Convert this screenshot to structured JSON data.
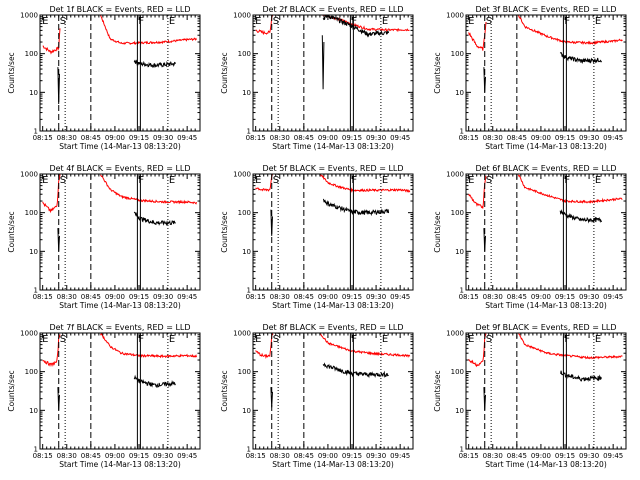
{
  "figure": {
    "background": "#ffffff",
    "colors": {
      "events": "#000000",
      "lld": "#ff0000"
    },
    "x_ticks": [
      "08:15",
      "08:30",
      "08:45",
      "09:00",
      "09:15",
      "09:30",
      "09:45"
    ],
    "x_tick_minutes": [
      15,
      30,
      45,
      60,
      75,
      90,
      105
    ],
    "y_ticks": [
      "1",
      "10",
      "100",
      "1000"
    ],
    "y_tick_values": [
      1,
      10,
      100,
      1000
    ],
    "ylabel": "Counts/sec",
    "xlabel": "Start Time (14-Mar-13 08:13:20)"
  },
  "chart_data": [
    {
      "type": "line",
      "title": "Det 1f BLACK = Events, RED = LLD",
      "xlim": [
        "08:13:20",
        "09:53"
      ],
      "ylim": [
        1,
        1000
      ],
      "yscale": "log",
      "xlabel": "Start Time (14-Mar-13 08:13:20)",
      "ylabel": "Counts/sec",
      "flags": [
        {
          "t": "08:14",
          "label": "E"
        },
        {
          "t": "08:25",
          "label": "S"
        },
        {
          "t": "09:14",
          "label": "F"
        },
        {
          "t": "09:33",
          "label": "E"
        }
      ],
      "red_pre": [
        [
          15,
          160
        ],
        [
          20,
          110
        ],
        [
          25,
          140
        ],
        [
          26,
          650
        ]
      ],
      "red_main": [
        [
          51,
          1000
        ],
        [
          57,
          240
        ],
        [
          64,
          185
        ],
        [
          75,
          190
        ],
        [
          90,
          200
        ],
        [
          105,
          230
        ],
        [
          111,
          240
        ]
      ],
      "black": [
        [
          72,
          65
        ],
        [
          76,
          55
        ],
        [
          85,
          50
        ],
        [
          98,
          55
        ]
      ],
      "spike": [
        [
          24.5,
          45
        ],
        [
          25,
          5
        ],
        [
          25.5,
          30
        ]
      ]
    },
    {
      "type": "line",
      "title": "Det 2f BLACK = Events, RED = LLD",
      "xlim": [
        "08:13:20",
        "09:53"
      ],
      "ylim": [
        1,
        1000
      ],
      "yscale": "log",
      "xlabel": "Start Time (14-Mar-13 08:13:20)",
      "ylabel": "Counts/sec",
      "flags": [
        {
          "t": "08:14",
          "label": "E"
        },
        {
          "t": "08:25",
          "label": "S"
        },
        {
          "t": "09:14",
          "label": "F"
        },
        {
          "t": "09:33",
          "label": "E"
        }
      ],
      "red_pre": [
        [
          15,
          400
        ],
        [
          20,
          350
        ],
        [
          24,
          350
        ],
        [
          25,
          900
        ],
        [
          26,
          1200
        ]
      ],
      "red_main": [
        [
          30,
          1300
        ],
        [
          55,
          1100
        ],
        [
          66,
          800
        ],
        [
          70,
          700
        ],
        [
          75,
          580
        ],
        [
          85,
          430
        ],
        [
          100,
          410
        ],
        [
          111,
          420
        ]
      ],
      "black": [
        [
          57,
          800
        ],
        [
          60,
          950
        ],
        [
          66,
          760
        ],
        [
          75,
          520
        ],
        [
          85,
          320
        ],
        [
          98,
          350
        ]
      ],
      "spike": [
        [
          56.5,
          300
        ],
        [
          57,
          12
        ],
        [
          57.5,
          200
        ]
      ]
    },
    {
      "type": "line",
      "title": "Det 3f BLACK = Events, RED = LLD",
      "xlim": [
        "08:13:20",
        "09:53"
      ],
      "ylim": [
        1,
        1000
      ],
      "yscale": "log",
      "xlabel": "Start Time (14-Mar-13 08:13:20)",
      "ylabel": "Counts/sec",
      "flags": [
        {
          "t": "08:14",
          "label": "E"
        },
        {
          "t": "08:25",
          "label": "S"
        },
        {
          "t": "09:14",
          "label": "F"
        },
        {
          "t": "09:33",
          "label": "E"
        }
      ],
      "red_pre": [
        [
          15,
          350
        ],
        [
          20,
          160
        ],
        [
          24,
          130
        ],
        [
          25,
          300
        ],
        [
          26,
          900
        ]
      ],
      "red_main": [
        [
          46,
          1000
        ],
        [
          50,
          500
        ],
        [
          64,
          280
        ],
        [
          75,
          200
        ],
        [
          90,
          190
        ],
        [
          105,
          210
        ],
        [
          111,
          230
        ]
      ],
      "black": [
        [
          72,
          100
        ],
        [
          76,
          80
        ],
        [
          85,
          65
        ],
        [
          98,
          70
        ]
      ],
      "spike": [
        [
          24.5,
          45
        ],
        [
          25,
          10
        ],
        [
          25.5,
          25
        ]
      ]
    },
    {
      "type": "line",
      "title": "Det 4f BLACK = Events, RED = LLD",
      "xlim": [
        "08:13:20",
        "09:53"
      ],
      "ylim": [
        1,
        1000
      ],
      "yscale": "log",
      "xlabel": "Start Time (14-Mar-13 08:13:20)",
      "ylabel": "Counts/sec",
      "flags": [
        {
          "t": "08:14",
          "label": "E"
        },
        {
          "t": "08:25",
          "label": "S"
        },
        {
          "t": "09:14",
          "label": "F"
        },
        {
          "t": "09:33",
          "label": "E"
        }
      ],
      "red_pre": [
        [
          15,
          180
        ],
        [
          20,
          110
        ],
        [
          24,
          150
        ],
        [
          25,
          700
        ],
        [
          26,
          1000
        ]
      ],
      "red_main": [
        [
          51,
          1000
        ],
        [
          57,
          400
        ],
        [
          64,
          260
        ],
        [
          75,
          210
        ],
        [
          90,
          190
        ],
        [
          105,
          190
        ],
        [
          111,
          180
        ]
      ],
      "black": [
        [
          72,
          100
        ],
        [
          76,
          70
        ],
        [
          85,
          55
        ],
        [
          98,
          55
        ]
      ],
      "spike": [
        [
          24.5,
          40
        ],
        [
          25,
          10
        ],
        [
          25.5,
          25
        ]
      ]
    },
    {
      "type": "line",
      "title": "Det 5f BLACK = Events, RED = LLD",
      "xlim": [
        "08:13:20",
        "09:53"
      ],
      "ylim": [
        1,
        1000
      ],
      "yscale": "log",
      "xlabel": "Start Time (14-Mar-13 08:13:20)",
      "ylabel": "Counts/sec",
      "flags": [
        {
          "t": "08:14",
          "label": "E"
        },
        {
          "t": "08:25",
          "label": "S"
        },
        {
          "t": "09:14",
          "label": "F"
        },
        {
          "t": "09:33",
          "label": "E"
        }
      ],
      "red_pre": [
        [
          15,
          450
        ],
        [
          20,
          380
        ],
        [
          24,
          400
        ],
        [
          25,
          900
        ],
        [
          26,
          1100
        ]
      ],
      "red_main": [
        [
          55,
          1000
        ],
        [
          60,
          600
        ],
        [
          66,
          480
        ],
        [
          75,
          380
        ],
        [
          90,
          380
        ],
        [
          105,
          390
        ],
        [
          111,
          360
        ]
      ],
      "black": [
        [
          57,
          220
        ],
        [
          60,
          170
        ],
        [
          66,
          140
        ],
        [
          75,
          105
        ],
        [
          85,
          100
        ],
        [
          98,
          110
        ]
      ],
      "spike": [
        [
          24.5,
          120
        ],
        [
          25,
          25
        ],
        [
          25.5,
          80
        ]
      ]
    },
    {
      "type": "line",
      "title": "Det 6f BLACK = Events, RED = LLD",
      "xlim": [
        "08:13:20",
        "09:53"
      ],
      "ylim": [
        1,
        1000
      ],
      "yscale": "log",
      "xlabel": "Start Time (14-Mar-13 08:13:20)",
      "ylabel": "Counts/sec",
      "flags": [
        {
          "t": "08:14",
          "label": "E"
        },
        {
          "t": "08:25",
          "label": "S"
        },
        {
          "t": "09:14",
          "label": "F"
        },
        {
          "t": "09:33",
          "label": "E"
        }
      ],
      "red_pre": [
        [
          15,
          300
        ],
        [
          20,
          160
        ],
        [
          24,
          140
        ],
        [
          25,
          600
        ],
        [
          26,
          1000
        ]
      ],
      "red_main": [
        [
          46,
          1000
        ],
        [
          50,
          450
        ],
        [
          64,
          280
        ],
        [
          75,
          200
        ],
        [
          90,
          190
        ],
        [
          105,
          220
        ],
        [
          111,
          230
        ]
      ],
      "black": [
        [
          72,
          110
        ],
        [
          76,
          85
        ],
        [
          85,
          65
        ],
        [
          98,
          65
        ]
      ],
      "spike": [
        [
          24.5,
          40
        ],
        [
          25,
          10
        ],
        [
          25.5,
          25
        ]
      ]
    },
    {
      "type": "line",
      "title": "Det 7f BLACK = Events, RED = LLD",
      "xlim": [
        "08:13:20",
        "09:53"
      ],
      "ylim": [
        1,
        1000
      ],
      "yscale": "log",
      "xlabel": "Start Time (14-Mar-13 08:13:20)",
      "ylabel": "Counts/sec",
      "flags": [
        {
          "t": "08:14",
          "label": "E"
        },
        {
          "t": "08:25",
          "label": "S"
        },
        {
          "t": "09:14",
          "label": "F"
        },
        {
          "t": "09:33",
          "label": "E"
        }
      ],
      "red_pre": [
        [
          15,
          200
        ],
        [
          20,
          150
        ],
        [
          24,
          180
        ],
        [
          25,
          700
        ],
        [
          26,
          1000
        ]
      ],
      "red_main": [
        [
          51,
          1000
        ],
        [
          57,
          450
        ],
        [
          64,
          300
        ],
        [
          75,
          260
        ],
        [
          90,
          250
        ],
        [
          105,
          260
        ],
        [
          111,
          250
        ]
      ],
      "black": [
        [
          72,
          70
        ],
        [
          76,
          55
        ],
        [
          85,
          45
        ],
        [
          98,
          50
        ]
      ],
      "spike": [
        [
          24.5,
          40
        ],
        [
          25,
          10
        ],
        [
          25.5,
          25
        ]
      ]
    },
    {
      "type": "line",
      "title": "Det 8f BLACK = Events, RED = LLD",
      "xlim": [
        "08:13:20",
        "09:53"
      ],
      "ylim": [
        1,
        1000
      ],
      "yscale": "log",
      "xlabel": "Start Time (14-Mar-13 08:13:20)",
      "ylabel": "Counts/sec",
      "flags": [
        {
          "t": "08:14",
          "label": "E"
        },
        {
          "t": "08:25",
          "label": "S"
        },
        {
          "t": "09:14",
          "label": "F"
        },
        {
          "t": "09:33",
          "label": "E"
        }
      ],
      "red_pre": [
        [
          15,
          330
        ],
        [
          20,
          250
        ],
        [
          24,
          260
        ],
        [
          25,
          800
        ],
        [
          26,
          1000
        ]
      ],
      "red_main": [
        [
          55,
          1000
        ],
        [
          60,
          550
        ],
        [
          66,
          450
        ],
        [
          75,
          340
        ],
        [
          90,
          290
        ],
        [
          105,
          270
        ],
        [
          111,
          250
        ]
      ],
      "black": [
        [
          57,
          160
        ],
        [
          60,
          140
        ],
        [
          66,
          115
        ],
        [
          75,
          90
        ],
        [
          85,
          85
        ],
        [
          98,
          85
        ]
      ],
      "spike": [
        [
          24.5,
          40
        ],
        [
          25,
          12
        ],
        [
          25.5,
          30
        ]
      ]
    },
    {
      "type": "line",
      "title": "Det 9f BLACK = Events, RED = LLD",
      "xlim": [
        "08:13:20",
        "09:53"
      ],
      "ylim": [
        1,
        1000
      ],
      "yscale": "log",
      "xlabel": "Start Time (14-Mar-13 08:13:20)",
      "ylabel": "Counts/sec",
      "flags": [
        {
          "t": "08:14",
          "label": "E"
        },
        {
          "t": "08:25",
          "label": "S"
        },
        {
          "t": "09:14",
          "label": "F"
        },
        {
          "t": "09:33",
          "label": "E"
        }
      ],
      "red_pre": [
        [
          15,
          200
        ],
        [
          20,
          150
        ],
        [
          24,
          180
        ],
        [
          25,
          700
        ],
        [
          26,
          1000
        ]
      ],
      "red_main": [
        [
          46,
          1000
        ],
        [
          50,
          500
        ],
        [
          64,
          300
        ],
        [
          75,
          260
        ],
        [
          90,
          230
        ],
        [
          105,
          240
        ],
        [
          111,
          250
        ]
      ],
      "black": [
        [
          72,
          100
        ],
        [
          76,
          80
        ],
        [
          85,
          65
        ],
        [
          98,
          70
        ]
      ],
      "spike": [
        [
          24.5,
          40
        ],
        [
          25,
          10
        ],
        [
          25.5,
          25
        ]
      ]
    }
  ]
}
